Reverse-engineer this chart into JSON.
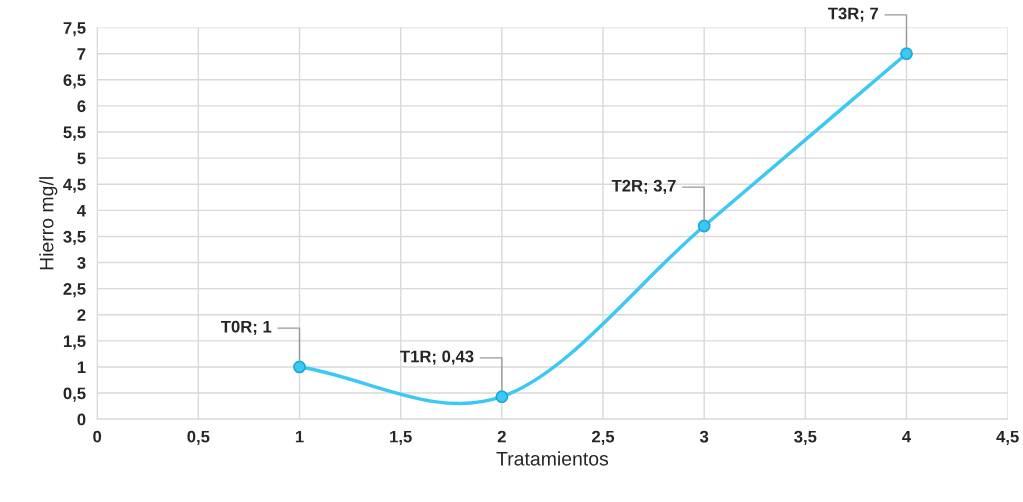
{
  "chart_data": {
    "type": "line",
    "xlabel": "Tratamientos",
    "ylabel": "Hierro mg/l",
    "x": [
      1,
      2,
      3,
      4
    ],
    "series": [
      {
        "color": "#3cc8f5",
        "values": [
          1,
          0.43,
          3.7,
          7
        ]
      }
    ],
    "annotations": [
      {
        "text": "T0R; 1",
        "x": 1,
        "y": 1
      },
      {
        "text": "T1R; 0,43",
        "x": 2,
        "y": 0.43
      },
      {
        "text": "T2R; 3,7",
        "x": 3,
        "y": 3.7
      },
      {
        "text": "T3R; 7",
        "x": 4,
        "y": 7
      }
    ],
    "xlim": [
      0,
      4.5
    ],
    "ylim": [
      0,
      7.5
    ],
    "xticks": [
      0,
      {
        "value": 0.5,
        "label": "0,5"
      },
      1,
      {
        "value": 1.5,
        "label": "1,5"
      },
      2,
      {
        "value": 2.5,
        "label": "2,5"
      },
      3,
      {
        "value": 3.5,
        "label": "3,5"
      },
      4,
      {
        "value": 4.5,
        "label": "4,5"
      }
    ],
    "yticks": [
      0,
      {
        "value": 0.5,
        "label": "0,5"
      },
      1,
      {
        "value": 1.5,
        "label": "1,5"
      },
      2,
      {
        "value": 2.5,
        "label": "2,5"
      },
      3,
      {
        "value": 3.5,
        "label": "3,5"
      },
      4,
      {
        "value": 4.5,
        "label": "4,5"
      },
      5,
      {
        "value": 5.5,
        "label": "5,5"
      },
      6,
      {
        "value": 6.5,
        "label": "6,5"
      },
      7,
      {
        "value": 7.5,
        "label": "7,5"
      }
    ],
    "grid": true,
    "marker": "circle",
    "line_style": "solid",
    "legend": false
  }
}
